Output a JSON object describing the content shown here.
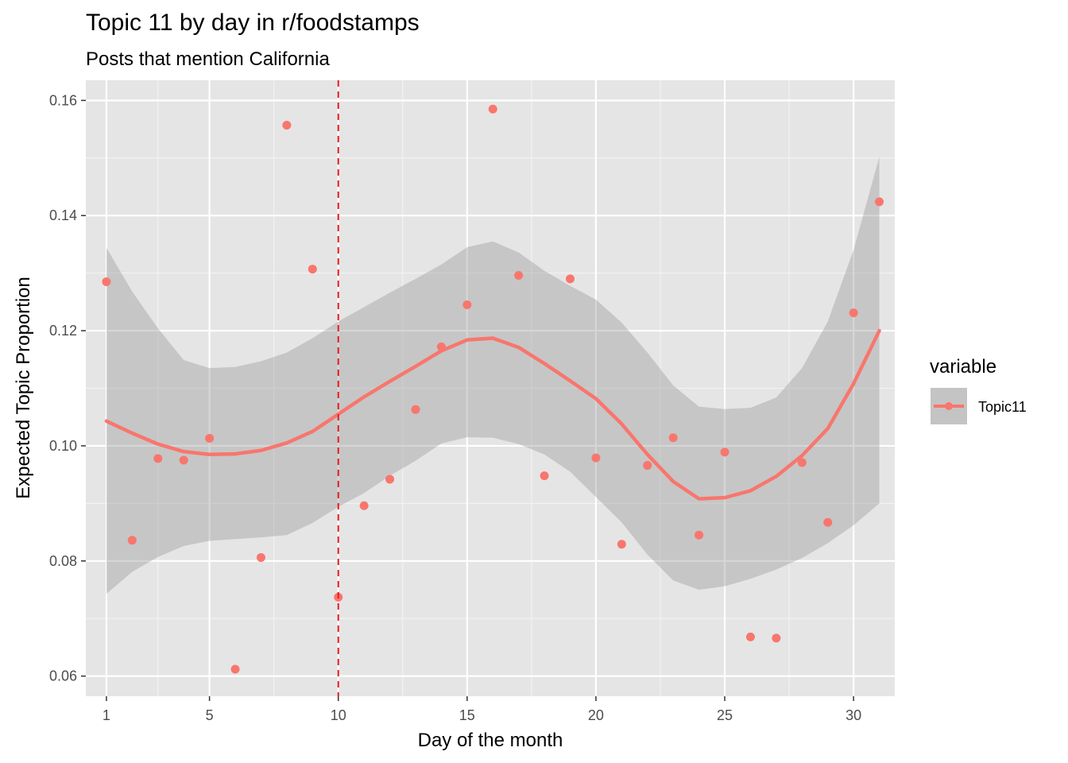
{
  "chart_data": {
    "type": "scatter",
    "title": "Topic 11 by day in r/foodstamps",
    "subtitle": "Posts that mention California",
    "xlabel": "Day of the month",
    "ylabel": "Expected Topic Proportion",
    "xlim": [
      0.2,
      31.6
    ],
    "ylim": [
      0.0565,
      0.1635
    ],
    "x_ticks": [
      1,
      5,
      10,
      15,
      20,
      25,
      30
    ],
    "x_tick_labels": [
      "1",
      "5",
      "10",
      "15",
      "20",
      "25",
      "30"
    ],
    "y_ticks": [
      0.06,
      0.08,
      0.1,
      0.12,
      0.14,
      0.16
    ],
    "y_tick_labels": [
      "0.06",
      "0.08",
      "0.10",
      "0.12",
      "0.14",
      "0.16"
    ],
    "grid": true,
    "legend_position": "right",
    "legend_title": "variable",
    "vline": {
      "x": 10,
      "color": "#e31a1c",
      "style": "dashed"
    },
    "series": [
      {
        "name": "Topic11",
        "color": "#f8766d",
        "x": [
          1,
          2,
          3,
          4,
          5,
          6,
          7,
          8,
          9,
          10,
          11,
          12,
          13,
          14,
          15,
          16,
          17,
          18,
          19,
          20,
          21,
          22,
          23,
          24,
          25,
          26,
          27,
          28,
          29,
          30,
          31
        ],
        "values": [
          0.1285,
          0.0836,
          0.0978,
          0.0975,
          0.1013,
          0.0612,
          0.0806,
          0.1557,
          0.1307,
          0.0737,
          0.0896,
          0.0942,
          0.1063,
          0.1172,
          0.1245,
          0.1585,
          0.1296,
          0.0948,
          0.129,
          0.0979,
          0.0829,
          0.0966,
          0.1014,
          0.0845,
          0.0989,
          0.0668,
          0.0666,
          0.0971,
          0.0867,
          0.1231,
          0.1424
        ]
      }
    ],
    "smooth": {
      "x": [
        1,
        2,
        3,
        4,
        5,
        6,
        7,
        8,
        9,
        10,
        11,
        12,
        13,
        14,
        15,
        16,
        17,
        18,
        19,
        20,
        21,
        22,
        23,
        24,
        25,
        26,
        27,
        28,
        29,
        30,
        31
      ],
      "fit": [
        0.1043,
        0.1022,
        0.1003,
        0.099,
        0.0985,
        0.0986,
        0.0992,
        0.1005,
        0.1025,
        0.1055,
        0.1085,
        0.1112,
        0.1138,
        0.1165,
        0.1184,
        0.1187,
        0.1171,
        0.1143,
        0.1113,
        0.1082,
        0.1038,
        0.0985,
        0.0938,
        0.0908,
        0.091,
        0.0922,
        0.0947,
        0.0983,
        0.103,
        0.1108,
        0.12
      ],
      "upper": [
        0.1344,
        0.1268,
        0.1204,
        0.1149,
        0.1135,
        0.1137,
        0.1147,
        0.1162,
        0.1187,
        0.1216,
        0.1241,
        0.1266,
        0.129,
        0.1315,
        0.1345,
        0.1355,
        0.1336,
        0.1304,
        0.1278,
        0.1254,
        0.1214,
        0.1162,
        0.1105,
        0.1068,
        0.1064,
        0.1066,
        0.1084,
        0.1135,
        0.1216,
        0.134,
        0.1502
      ],
      "lower": [
        0.0743,
        0.0781,
        0.0807,
        0.0826,
        0.0835,
        0.0838,
        0.0841,
        0.0845,
        0.0866,
        0.0894,
        0.0918,
        0.0948,
        0.0974,
        0.1004,
        0.1015,
        0.1014,
        0.1003,
        0.0985,
        0.0955,
        0.0911,
        0.0867,
        0.0811,
        0.0766,
        0.075,
        0.0756,
        0.0769,
        0.0785,
        0.0805,
        0.0831,
        0.0862,
        0.09
      ]
    }
  }
}
